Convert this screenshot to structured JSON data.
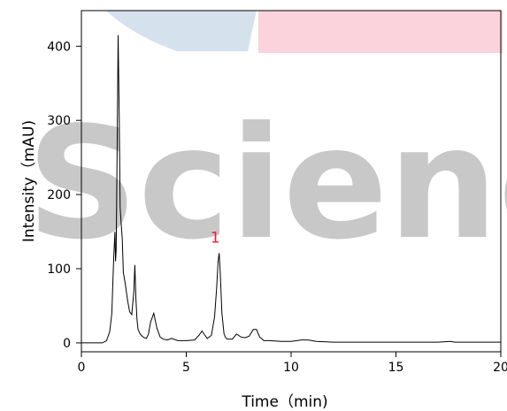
{
  "chart_data": {
    "type": "line",
    "xlabel": "Time（min)",
    "ylabel": "Intensity（mAU)",
    "xlim": [
      0,
      20
    ],
    "ylim": [
      -12,
      448
    ],
    "x_ticks": [
      0,
      5,
      10,
      15,
      20
    ],
    "y_ticks": [
      0,
      100,
      200,
      300,
      400
    ],
    "grid": false,
    "series": [
      {
        "color": "#000000",
        "x": [
          0,
          1.0,
          1.2,
          1.35,
          1.45,
          1.5,
          1.55,
          1.6,
          1.63,
          1.66,
          1.7,
          1.75,
          1.8,
          1.85,
          1.9,
          1.95,
          2.0,
          2.1,
          2.2,
          2.3,
          2.4,
          2.5,
          2.55,
          2.6,
          2.65,
          2.7,
          2.8,
          2.9,
          3.0,
          3.1,
          3.2,
          3.3,
          3.45,
          3.6,
          3.75,
          3.9,
          4.1,
          4.3,
          4.6,
          5.0,
          5.4,
          5.6,
          5.75,
          5.85,
          6.0,
          6.2,
          6.35,
          6.45,
          6.52,
          6.57,
          6.62,
          6.7,
          6.8,
          6.9,
          7.0,
          7.2,
          7.4,
          7.6,
          7.8,
          8.0,
          8.2,
          8.35,
          8.5,
          8.7,
          9.0,
          9.5,
          10.0,
          10.5,
          10.8,
          11.2,
          12,
          13,
          14,
          15,
          16,
          17,
          17.6,
          17.8,
          18,
          19,
          20
        ],
        "y": [
          0,
          0,
          3,
          15,
          40,
          80,
          120,
          150,
          110,
          125,
          250,
          415,
          310,
          182,
          160,
          140,
          95,
          78,
          58,
          42,
          38,
          70,
          105,
          60,
          32,
          18,
          12,
          9,
          7,
          6,
          12,
          28,
          40,
          20,
          8,
          5,
          4,
          6,
          3,
          3,
          4,
          10,
          16,
          12,
          6,
          10,
          35,
          75,
          110,
          121,
          95,
          40,
          12,
          6,
          5,
          5,
          12,
          8,
          7,
          9,
          18,
          18,
          8,
          3,
          3,
          2,
          2,
          4,
          4,
          2,
          1,
          1,
          1,
          1,
          1,
          1,
          2,
          1,
          1,
          1,
          1
        ]
      }
    ],
    "annotations": [
      {
        "text": "1",
        "x": 6.55,
        "y": 121,
        "color": "#e8212e"
      }
    ]
  },
  "watermark": {
    "text": "Scienc",
    "colors": {
      "blue": "#d5e2ee",
      "pink": "#fbd3dc",
      "gray": "#bfbfbf"
    }
  }
}
